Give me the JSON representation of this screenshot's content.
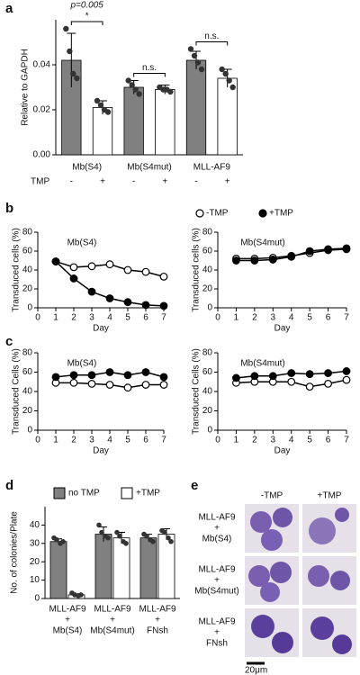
{
  "chart_data": [
    {
      "type": "bar",
      "panel": "a",
      "ylabel": "Relative to GAPDH",
      "ylim": [
        0,
        0.06
      ],
      "yticks": [
        {
          "value": 0,
          "label": "0.00"
        },
        {
          "value": 0.02,
          "label": "0.02"
        },
        {
          "value": 0.04,
          "label": "0.04"
        }
      ],
      "groups": [
        "Mb(S4)",
        "Mb(S4mut)",
        "MLL-AF9"
      ],
      "row_label": "TMP",
      "categories": [
        "-",
        "+",
        "-",
        "+",
        "-",
        "+"
      ],
      "values": [
        0.042,
        0.021,
        0.03,
        0.029,
        0.042,
        0.034
      ],
      "errors": [
        0.012,
        0.003,
        0.003,
        0.002,
        0.004,
        0.004
      ],
      "points": [
        [
          0.056,
          0.046,
          0.036,
          0.034
        ],
        [
          0.024,
          0.022,
          0.02,
          0.019
        ],
        [
          0.033,
          0.031,
          0.029,
          0.027
        ],
        [
          0.03,
          0.029,
          0.029,
          0.028
        ],
        [
          0.047,
          0.044,
          0.041,
          0.038
        ],
        [
          0.038,
          0.036,
          0.033,
          0.03
        ]
      ],
      "bar_colors": [
        "#808080",
        "#ffffff",
        "#808080",
        "#ffffff",
        "#808080",
        "#ffffff"
      ],
      "significance": [
        {
          "p": "p=0.005",
          "label": "*"
        },
        {
          "label": "n.s."
        },
        {
          "label": "n.s."
        }
      ]
    },
    {
      "type": "line",
      "panel": "b",
      "title": "Mb(S4)",
      "xlabel": "Day",
      "ylabel": "Transduced cells (%)",
      "x": [
        1,
        2,
        3,
        4,
        5,
        6,
        7
      ],
      "xlim": [
        0,
        7
      ],
      "xticks": [
        0,
        1,
        2,
        3,
        4,
        5,
        6,
        7
      ],
      "ylim": [
        0,
        80
      ],
      "yticks": [
        0,
        20,
        40,
        60,
        80
      ],
      "legend": "top",
      "series": [
        {
          "name": "-TMP",
          "color": "#000000",
          "fill": "#ffffff",
          "values": [
            49,
            43,
            44,
            46,
            40,
            38,
            33
          ]
        },
        {
          "name": "+TMP",
          "color": "#000000",
          "fill": "#000000",
          "values": [
            49,
            31,
            17,
            10,
            6,
            3,
            2
          ]
        }
      ]
    },
    {
      "type": "line",
      "title": "Mb(S4mut)",
      "xlabel": "Day",
      "ylabel": "Transduced cells (%)",
      "x": [
        1,
        2,
        3,
        4,
        5,
        6,
        7
      ],
      "xlim": [
        0,
        7
      ],
      "xticks": [
        0,
        1,
        2,
        3,
        4,
        5,
        6,
        7
      ],
      "ylim": [
        0,
        80
      ],
      "yticks": [
        0,
        20,
        40,
        60,
        80
      ],
      "series": [
        {
          "color": "#000000",
          "fill": "#ffffff",
          "values": [
            52,
            52,
            53,
            55,
            58,
            61,
            62
          ]
        },
        {
          "color": "#000000",
          "fill": "#000000",
          "values": [
            50,
            50,
            51,
            54,
            60,
            62,
            63
          ]
        }
      ]
    },
    {
      "type": "line",
      "panel": "c",
      "title": "Mb(S4)",
      "xlabel": "Day",
      "ylabel": "Transduced Cells (%)",
      "x": [
        1,
        2,
        3,
        4,
        5,
        6,
        7
      ],
      "xlim": [
        0,
        7
      ],
      "xticks": [
        0,
        1,
        2,
        3,
        4,
        5,
        6,
        7
      ],
      "ylim": [
        0,
        80
      ],
      "yticks": [
        0,
        20,
        40,
        60,
        80
      ],
      "series": [
        {
          "color": "#000000",
          "fill": "#ffffff",
          "values": [
            49,
            49,
            48,
            47,
            44,
            47,
            47
          ]
        },
        {
          "color": "#000000",
          "fill": "#000000",
          "values": [
            55,
            57,
            57,
            60,
            57,
            60,
            55
          ]
        }
      ]
    },
    {
      "type": "line",
      "title": "Mb(S4mut)",
      "xlabel": "Day",
      "ylabel": "Transduced Cells (%)",
      "x": [
        1,
        2,
        3,
        4,
        5,
        6,
        7
      ],
      "xlim": [
        0,
        7
      ],
      "xticks": [
        0,
        1,
        2,
        3,
        4,
        5,
        6,
        7
      ],
      "ylim": [
        0,
        80
      ],
      "yticks": [
        0,
        20,
        40,
        60,
        80
      ],
      "series": [
        {
          "color": "#000000",
          "fill": "#ffffff",
          "values": [
            49,
            50,
            50,
            50,
            45,
            48,
            52
          ]
        },
        {
          "color": "#000000",
          "fill": "#000000",
          "values": [
            54,
            56,
            56,
            59,
            58,
            59,
            61
          ]
        }
      ]
    },
    {
      "type": "groupbar",
      "panel": "d",
      "ylabel": "No. of colonies/Plate",
      "ylim": [
        0,
        50
      ],
      "yticks": [
        0,
        10,
        20,
        30,
        40
      ],
      "categories": [
        [
          "MLL-AF9",
          "+",
          "Mb(S4)"
        ],
        [
          "MLL-AF9",
          "+",
          "Mb(S4mut)"
        ],
        [
          "MLL-AF9",
          "+",
          "FNsh"
        ]
      ],
      "series": [
        {
          "name": "no TMP",
          "color": "#808080",
          "values": [
            31,
            35,
            33
          ],
          "errors": [
            1.5,
            4,
            2
          ],
          "points": [
            [
              33,
              32,
              30,
              31
            ],
            [
              40,
              36,
              34,
              33
            ],
            [
              35,
              34,
              32,
              31
            ]
          ]
        },
        {
          "name": "+TMP",
          "color": "#ffffff",
          "values": [
            2,
            33,
            35
          ],
          "errors": [
            0.5,
            3,
            3
          ],
          "points": [
            [
              3,
              2,
              1.5,
              2
            ],
            [
              36,
              34,
              31,
              30
            ],
            [
              37,
              36,
              33,
              31
            ]
          ]
        }
      ]
    }
  ],
  "micrographs": {
    "panel": "e",
    "columns": [
      "-TMP",
      "+TMP"
    ],
    "rows": [
      [
        "MLL-AF9",
        "+",
        "Mb(S4)"
      ],
      [
        "MLL-AF9",
        "+",
        "Mb(S4mut)"
      ],
      [
        "MLL-AF9",
        "+",
        "FNsh"
      ]
    ],
    "scale_bar": "20μm"
  }
}
